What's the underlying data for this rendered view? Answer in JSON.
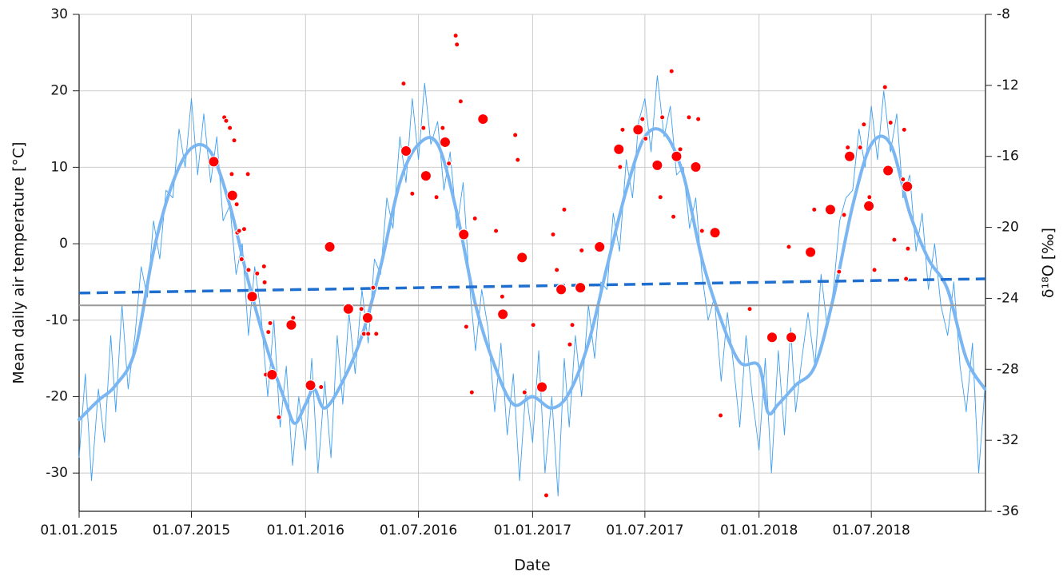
{
  "chart_data": {
    "type": "line",
    "x_label": "Date",
    "y_label": "Mean daily air temperature [°C]",
    "y2_label": "δ¹⁸O [‰]",
    "xlim": [
      "01.01.2015",
      "01.01.2019"
    ],
    "xticks": [
      "01.01.2015",
      "01.07.2015",
      "01.01.2016",
      "01.07.2016",
      "01.01.2017",
      "01.07.2017",
      "01.01.2018",
      "01.07.2018"
    ],
    "ylim": [
      -35,
      30
    ],
    "yticks": [
      -30,
      -20,
      -10,
      0,
      10,
      20,
      30
    ],
    "y2lim": [
      -36,
      -8
    ],
    "y2ticks": [
      -36,
      -32,
      -28,
      -24,
      -20,
      -16,
      -12,
      -8
    ],
    "grid": true,
    "series": [
      {
        "type": "line",
        "axis": "y",
        "color": "#3d9ff0",
        "line_width": 0.9,
        "x": [
          "01.01.2015",
          "11.01.2015",
          "21.01.2015",
          "01.02.2015",
          "11.02.2015",
          "21.02.2015",
          "01.03.2015",
          "11.03.2015",
          "21.03.2015",
          "01.04.2015",
          "11.04.2015",
          "21.04.2015",
          "01.05.2015",
          "11.05.2015",
          "21.05.2015",
          "01.06.2015",
          "11.06.2015",
          "21.06.2015",
          "01.07.2015",
          "11.07.2015",
          "21.07.2015",
          "01.08.2015",
          "11.08.2015",
          "21.08.2015",
          "01.09.2015",
          "11.09.2015",
          "21.09.2015",
          "01.10.2015",
          "11.10.2015",
          "21.10.2015",
          "01.11.2015",
          "11.11.2015",
          "21.11.2015",
          "01.12.2015",
          "11.12.2015",
          "21.12.2015",
          "01.01.2016",
          "11.01.2016",
          "21.01.2016",
          "01.02.2016",
          "11.02.2016",
          "21.02.2016",
          "01.03.2016",
          "11.03.2016",
          "21.03.2016",
          "01.04.2016",
          "11.04.2016",
          "21.04.2016",
          "01.05.2016",
          "11.05.2016",
          "21.05.2016",
          "01.06.2016",
          "11.06.2016",
          "21.06.2016",
          "01.07.2016",
          "11.07.2016",
          "21.07.2016",
          "01.08.2016",
          "11.08.2016",
          "21.08.2016",
          "01.09.2016",
          "11.09.2016",
          "21.09.2016",
          "01.10.2016",
          "11.10.2016",
          "21.10.2016",
          "01.11.2016",
          "11.11.2016",
          "21.11.2016",
          "01.12.2016",
          "11.12.2016",
          "21.12.2016",
          "01.01.2017",
          "11.01.2017",
          "21.01.2017",
          "01.02.2017",
          "11.02.2017",
          "21.02.2017",
          "01.03.2017",
          "11.03.2017",
          "21.03.2017",
          "01.04.2017",
          "11.04.2017",
          "21.04.2017",
          "01.05.2017",
          "11.05.2017",
          "21.05.2017",
          "01.06.2017",
          "11.06.2017",
          "21.06.2017",
          "01.07.2017",
          "11.07.2017",
          "21.07.2017",
          "01.08.2017",
          "11.08.2017",
          "21.08.2017",
          "01.09.2017",
          "11.09.2017",
          "21.09.2017",
          "01.10.2017",
          "11.10.2017",
          "21.10.2017",
          "01.11.2017",
          "11.11.2017",
          "21.11.2017",
          "01.12.2017",
          "11.12.2017",
          "21.12.2017",
          "01.01.2018",
          "11.01.2018",
          "21.01.2018",
          "01.02.2018",
          "11.02.2018",
          "21.02.2018",
          "01.03.2018",
          "11.03.2018",
          "21.03.2018",
          "01.04.2018",
          "11.04.2018",
          "21.04.2018",
          "01.05.2018",
          "11.05.2018",
          "21.05.2018",
          "01.06.2018",
          "11.06.2018",
          "21.06.2018",
          "01.07.2018",
          "11.07.2018",
          "21.07.2018",
          "01.08.2018",
          "11.08.2018",
          "21.08.2018",
          "01.09.2018",
          "11.09.2018",
          "21.09.2018",
          "01.10.2018",
          "11.10.2018",
          "21.10.2018",
          "01.11.2018",
          "11.11.2018",
          "21.11.2018",
          "01.12.2018",
          "11.12.2018",
          "21.12.2018",
          "31.12.2018"
        ],
        "values": [
          -28,
          -17,
          -31,
          -19,
          -26,
          -12,
          -22,
          -8,
          -19,
          -12,
          -3,
          -7,
          3,
          -2,
          7,
          6,
          15,
          10,
          19,
          9,
          17,
          8,
          14,
          3,
          5,
          -4,
          0,
          -12,
          -3,
          -9,
          -20,
          -10,
          -24,
          -16,
          -29,
          -20,
          -27,
          -15,
          -30,
          -18,
          -28,
          -12,
          -21,
          -9,
          -17,
          -6,
          -13,
          -2,
          -4,
          6,
          2,
          14,
          8,
          19,
          11,
          21,
          13,
          16,
          7,
          12,
          2,
          8,
          -5,
          -14,
          -6,
          -11,
          -22,
          -13,
          -25,
          -17,
          -31,
          -19,
          -26,
          -14,
          -30,
          -20,
          -33,
          -15,
          -24,
          -12,
          -20,
          -8,
          -15,
          -5,
          -6,
          4,
          -1,
          11,
          6,
          16,
          19,
          12,
          22,
          14,
          18,
          9,
          10,
          2,
          6,
          -4,
          -10,
          -7,
          -18,
          -9,
          -16,
          -24,
          -12,
          -20,
          -27,
          -15,
          -30,
          -14,
          -25,
          -11,
          -22,
          -15,
          -9,
          -16,
          -4,
          -11,
          -6,
          3,
          6,
          7,
          15,
          10,
          18,
          11,
          20,
          12,
          17,
          6,
          9,
          -1,
          4,
          -6,
          0,
          -8,
          -12,
          -5,
          -16,
          -22,
          -13,
          -30,
          -19
        ]
      },
      {
        "type": "smooth",
        "axis": "y",
        "color": "#7ab6f2",
        "line_width": 4,
        "x": [
          "01.01.2015",
          "01.02.2015",
          "01.03.2015",
          "01.04.2015",
          "01.05.2015",
          "01.06.2015",
          "01.07.2015",
          "01.08.2015",
          "01.09.2015",
          "01.10.2015",
          "01.11.2015",
          "01.12.2015",
          "15.12.2015",
          "01.01.2016",
          "15.01.2016",
          "01.02.2016",
          "01.03.2016",
          "01.04.2016",
          "01.05.2016",
          "01.06.2016",
          "01.07.2016",
          "01.08.2016",
          "01.09.2016",
          "01.10.2016",
          "01.11.2016",
          "01.12.2016",
          "01.01.2017",
          "01.02.2017",
          "01.03.2017",
          "01.04.2017",
          "01.05.2017",
          "01.06.2017",
          "01.07.2017",
          "01.08.2017",
          "01.09.2017",
          "01.10.2017",
          "01.11.2017",
          "01.12.2017",
          "01.01.2018",
          "15.01.2018",
          "01.02.2018",
          "01.03.2018",
          "01.04.2018",
          "01.05.2018",
          "01.06.2018",
          "01.07.2018",
          "01.08.2018",
          "01.09.2018",
          "01.10.2018",
          "01.11.2018",
          "01.12.2018",
          "31.12.2018"
        ],
        "values": [
          -23,
          -20.5,
          -18.5,
          -14,
          -1,
          8,
          12.5,
          12,
          5,
          -5,
          -14,
          -21,
          -23.5,
          -21,
          -19,
          -21.5,
          -18,
          -12,
          -3,
          8,
          13,
          13,
          4,
          -8,
          -16,
          -21,
          -20,
          -21.5,
          -19.5,
          -13,
          -3,
          7,
          14,
          14.5,
          9,
          -2,
          -10,
          -15.5,
          -16,
          -22,
          -21,
          -18.5,
          -16,
          -7,
          5,
          13,
          13,
          4,
          -2,
          -6,
          -15,
          -19
        ]
      },
      {
        "type": "scatter",
        "axis": "y2",
        "color": "#ff0000",
        "marker_size": 3,
        "x": [
          "23.08.2015",
          "26.08.2015",
          "01.09.2015",
          "04.09.2015",
          "08.09.2015",
          "12.09.2015",
          "13.09.2015",
          "16.09.2015",
          "20.09.2015",
          "24.09.2015",
          "30.09.2015",
          "01.10.2015",
          "15.10.2015",
          "26.10.2015",
          "27.10.2015",
          "29.10.2015",
          "02.11.2015",
          "05.11.2015",
          "19.11.2015",
          "12.12.2015",
          "26.01.2016",
          "31.03.2016",
          "04.04.2016",
          "11.04.2016",
          "19.04.2016",
          "24.04.2016",
          "07.06.2016",
          "21.06.2016",
          "09.07.2016",
          "30.07.2016",
          "09.08.2016",
          "19.08.2016",
          "30.08.2016",
          "01.09.2016",
          "07.09.2016",
          "16.09.2016",
          "25.09.2016",
          "30.09.2016",
          "03.11.2016",
          "13.11.2016",
          "04.12.2016",
          "08.12.2016",
          "19.12.2016",
          "02.01.2017",
          "23.01.2017",
          "03.02.2017",
          "09.02.2017",
          "21.02.2017",
          "02.03.2017",
          "06.03.2017",
          "21.03.2017",
          "22.05.2017",
          "26.05.2017",
          "27.06.2017",
          "02.07.2017",
          "26.07.2017",
          "29.07.2017",
          "13.08.2017",
          "16.08.2017",
          "27.08.2017",
          "10.09.2017",
          "25.09.2017",
          "01.10.2017",
          "31.10.2017",
          "17.12.2017",
          "18.02.2018",
          "31.03.2018",
          "10.05.2018",
          "18.05.2018",
          "24.05.2018",
          "13.06.2018",
          "19.06.2018",
          "28.06.2018",
          "06.07.2018",
          "23.07.2018",
          "01.08.2018",
          "07.08.2018",
          "21.08.2018",
          "23.08.2018",
          "26.08.2018",
          "29.08.2018"
        ],
        "values": [
          -13.8,
          -14,
          -14.4,
          -17,
          -15.1,
          -18.7,
          -20.3,
          -20.2,
          -21.8,
          -20.1,
          -17,
          -22.4,
          -22.6,
          -22.2,
          -23.1,
          -28.3,
          -25.9,
          -25.4,
          -30.7,
          -25.1,
          -29,
          -24.6,
          -26,
          -26,
          -23.4,
          -26,
          -11.9,
          -18.1,
          -14.4,
          -18.3,
          -14.4,
          -16.4,
          -9.2,
          -9.7,
          -12.9,
          -25.6,
          -29.3,
          -19.5,
          -20.2,
          -23.9,
          -14.8,
          -16.2,
          -29.3,
          -25.5,
          -35.1,
          -20.4,
          -22.4,
          -19,
          -26.6,
          -25.5,
          -21.3,
          -16.6,
          -14.5,
          -13.9,
          -15,
          -18.3,
          -13.8,
          -11.2,
          -19.4,
          -15.6,
          -13.8,
          -13.9,
          -20.2,
          -30.6,
          -24.6,
          -21.1,
          -19,
          -22.5,
          -19.3,
          -15.5,
          -15.5,
          -14.2,
          -18.3,
          -22.4,
          -12.1,
          -14.1,
          -20.7,
          -17.3,
          -14.5,
          -22.9,
          -21.2
        ]
      },
      {
        "type": "scatter",
        "axis": "y2",
        "color": "#ff0000",
        "marker_size": 6.5,
        "x": [
          "06.08.2015",
          "05.09.2015",
          "07.10.2015",
          "08.11.2015",
          "09.12.2015",
          "09.01.2016",
          "09.02.2016",
          "10.03.2016",
          "10.04.2016",
          "11.06.2016",
          "13.07.2016",
          "13.08.2016",
          "12.09.2016",
          "13.10.2016",
          "14.11.2016",
          "15.12.2016",
          "16.01.2017",
          "16.02.2017",
          "19.03.2017",
          "19.04.2017",
          "20.05.2017",
          "20.06.2017",
          "21.07.2017",
          "21.08.2017",
          "21.09.2017",
          "22.10.2017",
          "22.01.2018",
          "22.02.2018",
          "25.03.2018",
          "26.04.2018",
          "27.05.2018",
          "27.06.2018",
          "28.07.2018",
          "28.08.2018"
        ],
        "values": [
          -16.3,
          -18.2,
          -23.9,
          -28.3,
          -25.5,
          -28.9,
          -21.1,
          -24.6,
          -25.1,
          -15.7,
          -17.1,
          -15.2,
          -20.4,
          -13.9,
          -24.9,
          -21.7,
          -29,
          -23.5,
          -23.4,
          -21.1,
          -15.6,
          -14.5,
          -16.5,
          -16,
          -16.6,
          -20.3,
          -26.2,
          -26.2,
          -21.4,
          -19,
          -16,
          -18.8,
          -16.8,
          -17.7
        ]
      },
      {
        "type": "line",
        "axis": "y2",
        "color": "#1f6fd1",
        "line_width": 3.5,
        "dashed": true,
        "x": [
          "01.01.2015",
          "01.01.2019"
        ],
        "values": [
          -23.7,
          -22.9
        ]
      },
      {
        "type": "line",
        "axis": "y2",
        "color": "#999999",
        "line_width": 2,
        "x": [
          "01.01.2015",
          "01.01.2019"
        ],
        "values": [
          -24.4,
          -24.4
        ]
      }
    ]
  }
}
